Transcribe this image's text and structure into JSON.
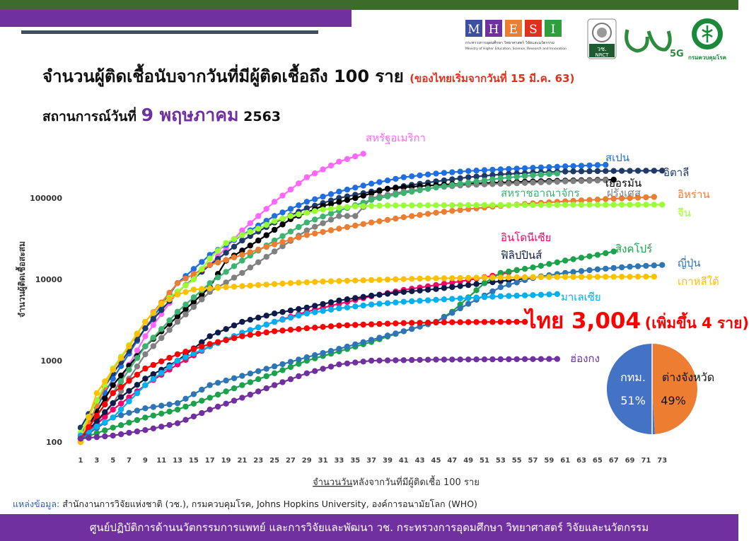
{
  "header": {
    "title": "จำนวนผู้ติดเชื้อนับจากวันที่มีผู้ติดเชื้อถึง 100 ราย",
    "title_note": "(ของไทยเริ่มจากวันที่ 15 มี.ค. 63)",
    "subtitle_prefix": "สถานการณ์วันที่",
    "subtitle_date": "9 พฤษภาคม",
    "subtitle_year": "2563"
  },
  "logos": {
    "mhesi_letters": [
      "M",
      "H",
      "E",
      "S",
      "I"
    ],
    "mhesi_line1": "กระทรวงการอุดมศึกษา วิทยาศาสตร์ วิจัยและนวัตกรรม",
    "mhesi_line2": "Ministry of Higher Education, Science, Research and Innovation",
    "nrct_label": "วช.",
    "nrct_sub": "NRCT",
    "fiveg_label": "5G",
    "ddc_label": "กรมควบคุมโรค"
  },
  "source": {
    "label": "แหล่งข้อมูล:",
    "text": "สำนักงานการวิจัยแห่งชาติ (วช.), กรมควบคุมโรค, Johns Hopkins University, องค์การอนามัยโลก (WHO)"
  },
  "footer": {
    "text": "ศูนย์ปฏิบัติการด้านนวัตกรรมการแพทย์ และการวิจัยและพัฒนา วช.  กระทรวงการอุดมศึกษา วิทยาศาสตร์ วิจัยและนวัตกรรม"
  },
  "thailand_callout": {
    "main": "ไทย 3,004",
    "note": "(เพิ่มขึ้น 4 ราย)"
  },
  "chart_data": {
    "type": "line",
    "y_scale": "log",
    "ylim": [
      100,
      300000
    ],
    "yticks": [
      100,
      1000,
      10000,
      100000
    ],
    "ytick_labels": [
      "100",
      "1000",
      "10000",
      "100000"
    ],
    "xticks": [
      1,
      3,
      5,
      7,
      9,
      11,
      13,
      15,
      17,
      19,
      21,
      23,
      25,
      27,
      29,
      31,
      33,
      35,
      37,
      39,
      41,
      43,
      45,
      47,
      49,
      51,
      53,
      55,
      57,
      59,
      61,
      63,
      65,
      67,
      69,
      71,
      73
    ],
    "xlim": [
      1,
      74
    ],
    "ylabel": "จำนวนผู้ติดเชื้อสะสม",
    "xlabel_underlined": "จำนวนวัน",
    "xlabel_rest": "หลังจากวันที่มีผู้ติดเชื้อ 100 ราย",
    "grid": false,
    "series": [
      {
        "name": "สหรัฐอเมริกา",
        "color": "#ff66ff",
        "days": 36,
        "anchors": [
          [
            1,
            110
          ],
          [
            5,
            400
          ],
          [
            9,
            2000
          ],
          [
            13,
            7000
          ],
          [
            17,
            15000
          ],
          [
            21,
            40000
          ],
          [
            25,
            90000
          ],
          [
            29,
            180000
          ],
          [
            33,
            280000
          ],
          [
            36,
            350000
          ]
        ]
      },
      {
        "name": "สเปน",
        "color": "#1f6fe0",
        "days": 66,
        "anchors": [
          [
            1,
            120
          ],
          [
            5,
            600
          ],
          [
            9,
            2500
          ],
          [
            13,
            9000
          ],
          [
            17,
            20000
          ],
          [
            21,
            35000
          ],
          [
            25,
            60000
          ],
          [
            29,
            90000
          ],
          [
            33,
            120000
          ],
          [
            37,
            150000
          ],
          [
            41,
            180000
          ],
          [
            45,
            200000
          ],
          [
            49,
            215000
          ],
          [
            53,
            225000
          ],
          [
            57,
            235000
          ],
          [
            61,
            245000
          ],
          [
            66,
            256000
          ]
        ]
      },
      {
        "name": "อิตาลี",
        "color": "#1f3a68",
        "days": 73,
        "anchors": [
          [
            1,
            150
          ],
          [
            5,
            700
          ],
          [
            9,
            2500
          ],
          [
            13,
            7000
          ],
          [
            17,
            15000
          ],
          [
            21,
            30000
          ],
          [
            25,
            50000
          ],
          [
            29,
            75000
          ],
          [
            33,
            100000
          ],
          [
            37,
            120000
          ],
          [
            41,
            140000
          ],
          [
            45,
            160000
          ],
          [
            49,
            180000
          ],
          [
            53,
            195000
          ],
          [
            57,
            205000
          ],
          [
            61,
            212000
          ],
          [
            66,
            215000
          ],
          [
            73,
            217000
          ]
        ]
      },
      {
        "name": "เยอรมัน",
        "color": "#000000",
        "days": 67,
        "anchors": [
          [
            1,
            110
          ],
          [
            5,
            500
          ],
          [
            9,
            1500
          ],
          [
            13,
            3500
          ],
          [
            17,
            8000
          ],
          [
            19,
            17000
          ],
          [
            23,
            30000
          ],
          [
            27,
            55000
          ],
          [
            31,
            80000
          ],
          [
            35,
            100000
          ],
          [
            39,
            130000
          ],
          [
            43,
            140000
          ],
          [
            47,
            148000
          ],
          [
            53,
            155000
          ],
          [
            59,
            162000
          ],
          [
            67,
            168000
          ]
        ]
      },
      {
        "name": "ฝรั่งเศส",
        "color": "#808080",
        "days": 66,
        "anchors": [
          [
            1,
            100
          ],
          [
            5,
            300
          ],
          [
            9,
            1200
          ],
          [
            13,
            3000
          ],
          [
            17,
            7000
          ],
          [
            21,
            12000
          ],
          [
            25,
            22000
          ],
          [
            29,
            40000
          ],
          [
            33,
            60000
          ],
          [
            35,
            60000
          ],
          [
            37,
            100000
          ],
          [
            41,
            120000
          ],
          [
            45,
            135000
          ],
          [
            49,
            145000
          ],
          [
            55,
            152000
          ],
          [
            61,
            160000
          ],
          [
            66,
            165000
          ]
        ]
      },
      {
        "name": "สหราชอาณาจักร",
        "color": "#3cb371",
        "days": 60,
        "anchors": [
          [
            1,
            110
          ],
          [
            5,
            400
          ],
          [
            9,
            1500
          ],
          [
            13,
            4000
          ],
          [
            17,
            9000
          ],
          [
            21,
            17000
          ],
          [
            25,
            30000
          ],
          [
            29,
            50000
          ],
          [
            33,
            70000
          ],
          [
            37,
            95000
          ],
          [
            41,
            115000
          ],
          [
            45,
            135000
          ],
          [
            49,
            155000
          ],
          [
            53,
            175000
          ],
          [
            57,
            190000
          ],
          [
            60,
            200000
          ]
        ]
      },
      {
        "name": "อิหร่าน",
        "color": "#ed7d31",
        "days": 72,
        "anchors": [
          [
            1,
            100
          ],
          [
            5,
            800
          ],
          [
            9,
            3000
          ],
          [
            13,
            9000
          ],
          [
            17,
            15000
          ],
          [
            21,
            20000
          ],
          [
            25,
            27000
          ],
          [
            29,
            35000
          ],
          [
            33,
            42000
          ],
          [
            37,
            50000
          ],
          [
            41,
            58000
          ],
          [
            45,
            66000
          ],
          [
            49,
            73000
          ],
          [
            53,
            80000
          ],
          [
            57,
            86000
          ],
          [
            61,
            91000
          ],
          [
            66,
            97000
          ],
          [
            72,
            103000
          ]
        ]
      },
      {
        "name": "จีน",
        "color": "#99ff33",
        "days": 73,
        "anchors": [
          [
            1,
            130
          ],
          [
            5,
            800
          ],
          [
            9,
            3000
          ],
          [
            11,
            5000
          ],
          [
            15,
            10000
          ],
          [
            17,
            18000
          ],
          [
            19,
            28000
          ],
          [
            21,
            35000
          ],
          [
            23,
            42000
          ],
          [
            25,
            52000
          ],
          [
            27,
            60000
          ],
          [
            29,
            66000
          ],
          [
            31,
            72000
          ],
          [
            33,
            76000
          ],
          [
            35,
            79000
          ],
          [
            39,
            81000
          ],
          [
            45,
            81500
          ],
          [
            55,
            82000
          ],
          [
            65,
            82500
          ],
          [
            73,
            82800
          ]
        ]
      },
      {
        "name": "อินโดนีเซีย",
        "color": "#ff0066",
        "days": 55,
        "anchors": [
          [
            1,
            110
          ],
          [
            5,
            250
          ],
          [
            9,
            500
          ],
          [
            13,
            900
          ],
          [
            17,
            1500
          ],
          [
            21,
            2200
          ],
          [
            25,
            3000
          ],
          [
            29,
            4000
          ],
          [
            33,
            5000
          ],
          [
            37,
            6200
          ],
          [
            41,
            7400
          ],
          [
            45,
            8500
          ],
          [
            49,
            9800
          ],
          [
            53,
            11500
          ],
          [
            55,
            13000
          ]
        ]
      },
      {
        "name": "ฟิลิปปินส์",
        "color": "#0d1b4a",
        "days": 57,
        "anchors": [
          [
            1,
            110
          ],
          [
            5,
            300
          ],
          [
            9,
            600
          ],
          [
            13,
            1000
          ],
          [
            17,
            2000
          ],
          [
            21,
            3000
          ],
          [
            25,
            3800
          ],
          [
            29,
            4500
          ],
          [
            33,
            5500
          ],
          [
            37,
            6300
          ],
          [
            41,
            7000
          ],
          [
            45,
            7600
          ],
          [
            49,
            8500
          ],
          [
            53,
            9500
          ],
          [
            57,
            10400
          ]
        ]
      },
      {
        "name": "สิงคโปร์",
        "color": "#1aa34a",
        "days": 67,
        "anchors": [
          [
            1,
            110
          ],
          [
            5,
            150
          ],
          [
            9,
            200
          ],
          [
            13,
            250
          ],
          [
            17,
            350
          ],
          [
            21,
            500
          ],
          [
            25,
            700
          ],
          [
            29,
            1000
          ],
          [
            33,
            1300
          ],
          [
            37,
            1700
          ],
          [
            41,
            2300
          ],
          [
            45,
            3000
          ],
          [
            47,
            4000
          ],
          [
            49,
            6000
          ],
          [
            51,
            9000
          ],
          [
            53,
            12000
          ],
          [
            57,
            14000
          ],
          [
            61,
            17000
          ],
          [
            65,
            20000
          ],
          [
            67,
            22000
          ]
        ]
      },
      {
        "name": "ญี่ปุ่น",
        "color": "#2e75b6",
        "days": 73,
        "anchors": [
          [
            1,
            110
          ],
          [
            5,
            200
          ],
          [
            9,
            260
          ],
          [
            13,
            300
          ],
          [
            17,
            500
          ],
          [
            21,
            650
          ],
          [
            25,
            850
          ],
          [
            29,
            1100
          ],
          [
            33,
            1400
          ],
          [
            37,
            1800
          ],
          [
            41,
            2300
          ],
          [
            45,
            3000
          ],
          [
            49,
            5000
          ],
          [
            53,
            8000
          ],
          [
            57,
            10500
          ],
          [
            61,
            12000
          ],
          [
            65,
            13300
          ],
          [
            69,
            14300
          ],
          [
            73,
            15000
          ]
        ]
      },
      {
        "name": "เกาหลีใต้",
        "color": "#ffc000",
        "days": 72,
        "anchors": [
          [
            1,
            100
          ],
          [
            3,
            400
          ],
          [
            7,
            1500
          ],
          [
            9,
            3000
          ],
          [
            11,
            5000
          ],
          [
            13,
            6500
          ],
          [
            15,
            7500
          ],
          [
            19,
            8000
          ],
          [
            23,
            8500
          ],
          [
            27,
            9000
          ],
          [
            31,
            9400
          ],
          [
            37,
            9800
          ],
          [
            43,
            10200
          ],
          [
            51,
            10500
          ],
          [
            61,
            10700
          ],
          [
            72,
            10800
          ]
        ]
      },
      {
        "name": "มาเลเซีย",
        "color": "#00b0f0",
        "days": 60,
        "anchors": [
          [
            1,
            120
          ],
          [
            5,
            200
          ],
          [
            9,
            500
          ],
          [
            13,
            1000
          ],
          [
            17,
            1500
          ],
          [
            21,
            2200
          ],
          [
            25,
            3000
          ],
          [
            29,
            3800
          ],
          [
            33,
            4400
          ],
          [
            37,
            4900
          ],
          [
            41,
            5300
          ],
          [
            45,
            5600
          ],
          [
            49,
            5900
          ],
          [
            53,
            6200
          ],
          [
            57,
            6400
          ],
          [
            60,
            6600
          ]
        ]
      },
      {
        "name": "ไทย",
        "color": "#ff0000",
        "days": 56,
        "anchors": [
          [
            1,
            110
          ],
          [
            5,
            400
          ],
          [
            9,
            800
          ],
          [
            13,
            1200
          ],
          [
            17,
            1600
          ],
          [
            21,
            2000
          ],
          [
            25,
            2300
          ],
          [
            29,
            2500
          ],
          [
            33,
            2700
          ],
          [
            37,
            2800
          ],
          [
            41,
            2900
          ],
          [
            45,
            2950
          ],
          [
            49,
            2980
          ],
          [
            53,
            2995
          ],
          [
            56,
            3004
          ]
        ]
      },
      {
        "name": "ฮ่องกง",
        "color": "#7030a0",
        "days": 60,
        "anchors": [
          [
            1,
            110
          ],
          [
            5,
            120
          ],
          [
            9,
            140
          ],
          [
            13,
            170
          ],
          [
            17,
            250
          ],
          [
            21,
            350
          ],
          [
            25,
            500
          ],
          [
            29,
            700
          ],
          [
            33,
            900
          ],
          [
            37,
            1000
          ],
          [
            45,
            1030
          ],
          [
            53,
            1040
          ],
          [
            60,
            1050
          ]
        ]
      }
    ],
    "pie": {
      "type": "pie",
      "slices": [
        {
          "label": "กทม.",
          "value": 51,
          "value_label": "51%",
          "color": "#4472c4"
        },
        {
          "label": "ต่างจังหวัด",
          "value": 49,
          "value_label": "49%",
          "color": "#ed7d31"
        }
      ]
    }
  }
}
